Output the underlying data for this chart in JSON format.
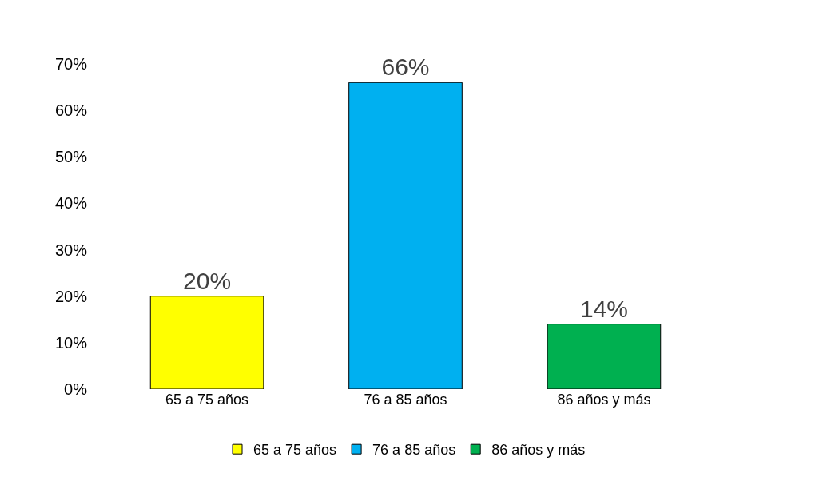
{
  "chart_data": {
    "type": "bar",
    "categories": [
      "65 a 75 años",
      "76 a 85 años",
      "86 años y más"
    ],
    "series": [
      {
        "name": "65 a 75 años",
        "color": "#ffff00",
        "values": [
          20,
          null,
          null
        ],
        "value_labels": [
          "20%",
          null,
          null
        ]
      },
      {
        "name": "76 a 85 años",
        "color": "#00b0f0",
        "values": [
          null,
          66,
          null
        ],
        "value_labels": [
          null,
          "66%",
          null
        ]
      },
      {
        "name": "86 años y más",
        "color": "#00b050",
        "values": [
          null,
          null,
          14
        ],
        "value_labels": [
          null,
          null,
          "14%"
        ]
      }
    ],
    "ylim": [
      0,
      70
    ],
    "yticks": [
      {
        "value": 0,
        "label": "0%"
      },
      {
        "value": 10,
        "label": "10%"
      },
      {
        "value": 20,
        "label": "20%"
      },
      {
        "value": 30,
        "label": "30%"
      },
      {
        "value": 40,
        "label": "40%"
      },
      {
        "value": 50,
        "label": "50%"
      },
      {
        "value": 60,
        "label": "60%"
      },
      {
        "value": 70,
        "label": "70%"
      }
    ],
    "grid": false,
    "legend": "bottom"
  }
}
